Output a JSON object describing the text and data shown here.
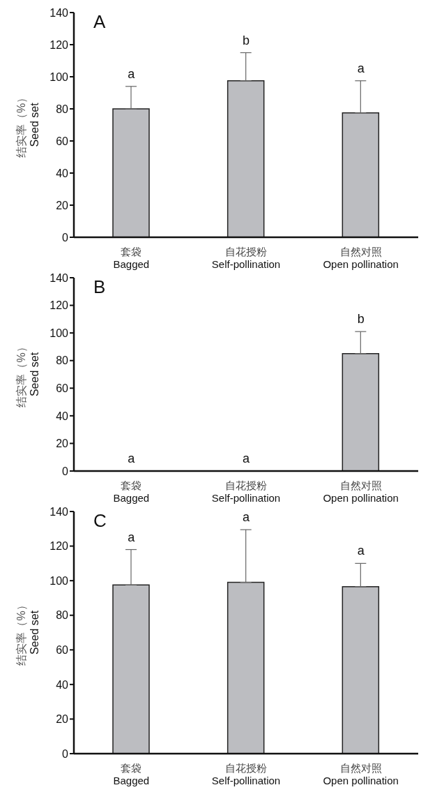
{
  "chart_data": [
    {
      "type": "bar",
      "title": "A",
      "ylabel": "结实率（%）\nSeed set",
      "categories": [
        "套袋\nBagged",
        "自花授粉\nSelf-pollination",
        "自然对照\nOpen pollination"
      ],
      "values": [
        80,
        97.5,
        77.5
      ],
      "errors": [
        [
          80,
          94
        ],
        [
          97.5,
          115
        ],
        [
          77.5,
          97.5
        ]
      ],
      "color": "#bcbdc1",
      "ylim": [
        0,
        140
      ],
      "yticks": [
        0,
        20,
        40,
        60,
        80,
        100,
        120,
        140
      ],
      "annotations": [
        "a",
        "b",
        "a"
      ]
    },
    {
      "type": "bar",
      "title": "B",
      "ylabel": "结实率（%）\nSeed set",
      "categories": [
        "套袋\nBagged",
        "自花授粉\nSelf-pollination",
        "自然对照\nOpen pollination"
      ],
      "values": [
        0,
        0,
        85
      ],
      "errors": [
        null,
        null,
        [
          85,
          101
        ]
      ],
      "color": "#bcbdc1",
      "ylim": [
        0,
        140
      ],
      "yticks": [
        0,
        20,
        40,
        60,
        80,
        100,
        120,
        140
      ],
      "annotations": [
        "a",
        "a",
        "b"
      ]
    },
    {
      "type": "bar",
      "title": "C",
      "ylabel": "结实率（%）\nSeed set",
      "categories": [
        "套袋\nBagged",
        "自花授粉\nSelf-pollination",
        "自然对照\nOpen pollination"
      ],
      "values": [
        97.5,
        99,
        96.5
      ],
      "errors": [
        [
          97.5,
          118
        ],
        [
          99,
          129.5
        ],
        [
          96.5,
          110
        ]
      ],
      "color": "#bcbdc1",
      "ylim": [
        0,
        140
      ],
      "yticks": [
        0,
        20,
        40,
        60,
        80,
        100,
        120,
        140
      ],
      "annotations": [
        "a",
        "a",
        "a"
      ]
    }
  ]
}
